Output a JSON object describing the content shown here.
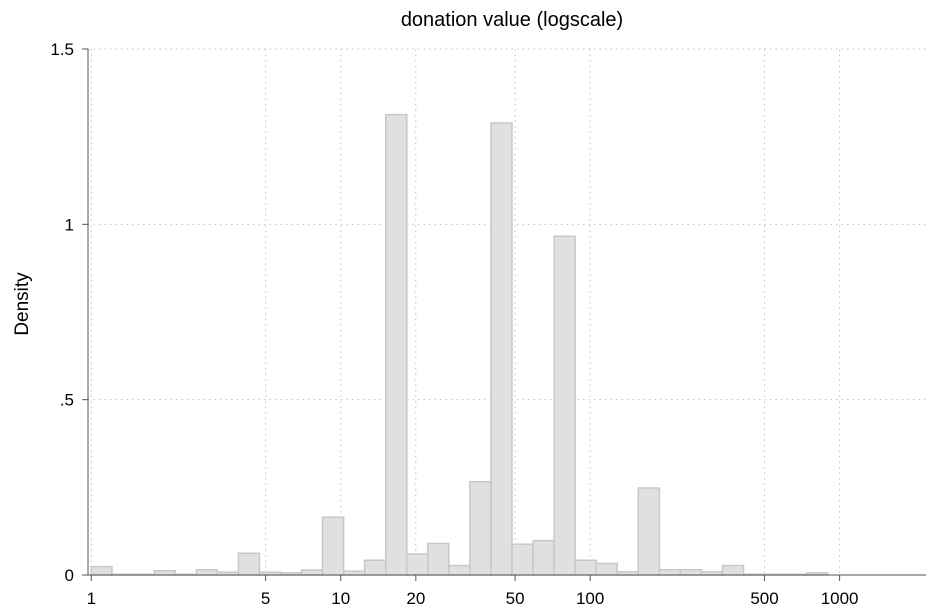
{
  "chart_data": {
    "type": "bar",
    "title": "donation value (logscale)",
    "xlabel": "",
    "ylabel": "Density",
    "xscale": "log",
    "xlim": [
      0.97,
      2220
    ],
    "ylim": [
      0,
      1.5
    ],
    "x_ticks": [
      {
        "value": 1,
        "label": "1"
      },
      {
        "value": 5,
        "label": "5"
      },
      {
        "value": 10,
        "label": "10"
      },
      {
        "value": 20,
        "label": "20"
      },
      {
        "value": 50,
        "label": "50"
      },
      {
        "value": 100,
        "label": "100"
      },
      {
        "value": 500,
        "label": "500"
      },
      {
        "value": 1000,
        "label": "1000"
      }
    ],
    "y_ticks": [
      {
        "value": 0,
        "label": "0"
      },
      {
        "value": 0.5,
        "label": ".5"
      },
      {
        "value": 1,
        "label": "1"
      },
      {
        "value": 1.5,
        "label": "1.5"
      }
    ],
    "grid": true,
    "legend": "none",
    "bar_fill": "#e0e0e0",
    "bar_edge": "#c8c8c8",
    "grid_color": "#c0c0c0",
    "bars": [
      {
        "x0": 1.0,
        "x1": 1.21,
        "density": 0.024
      },
      {
        "x0": 1.21,
        "x1": 1.47,
        "density": 0.002
      },
      {
        "x0": 1.47,
        "x1": 1.79,
        "density": 0.002
      },
      {
        "x0": 1.79,
        "x1": 2.17,
        "density": 0.012
      },
      {
        "x0": 2.17,
        "x1": 2.64,
        "density": 0.002
      },
      {
        "x0": 2.64,
        "x1": 3.2,
        "density": 0.015
      },
      {
        "x0": 3.2,
        "x1": 3.89,
        "density": 0.008
      },
      {
        "x0": 3.89,
        "x1": 4.72,
        "density": 0.062
      },
      {
        "x0": 4.72,
        "x1": 5.73,
        "density": 0.008
      },
      {
        "x0": 5.73,
        "x1": 6.96,
        "density": 0.006
      },
      {
        "x0": 6.96,
        "x1": 8.45,
        "density": 0.014
      },
      {
        "x0": 8.45,
        "x1": 10.27,
        "density": 0.165
      },
      {
        "x0": 10.27,
        "x1": 12.47,
        "density": 0.011
      },
      {
        "x0": 12.47,
        "x1": 15.15,
        "density": 0.042
      },
      {
        "x0": 15.15,
        "x1": 18.4,
        "density": 1.313
      },
      {
        "x0": 18.4,
        "x1": 22.34,
        "density": 0.06
      },
      {
        "x0": 22.34,
        "x1": 27.13,
        "density": 0.09
      },
      {
        "x0": 27.13,
        "x1": 32.95,
        "density": 0.027
      },
      {
        "x0": 32.95,
        "x1": 40.02,
        "density": 0.266
      },
      {
        "x0": 40.02,
        "x1": 48.6,
        "density": 1.289
      },
      {
        "x0": 48.6,
        "x1": 59.03,
        "density": 0.088
      },
      {
        "x0": 59.03,
        "x1": 71.69,
        "density": 0.098
      },
      {
        "x0": 71.69,
        "x1": 87.06,
        "density": 0.966
      },
      {
        "x0": 87.06,
        "x1": 105.73,
        "density": 0.042
      },
      {
        "x0": 105.73,
        "x1": 128.4,
        "density": 0.033
      },
      {
        "x0": 128.4,
        "x1": 155.94,
        "density": 0.009
      },
      {
        "x0": 155.94,
        "x1": 189.38,
        "density": 0.248
      },
      {
        "x0": 189.38,
        "x1": 230.0,
        "density": 0.015
      },
      {
        "x0": 230.0,
        "x1": 279.32,
        "density": 0.015
      },
      {
        "x0": 279.32,
        "x1": 339.21,
        "density": 0.009
      },
      {
        "x0": 339.21,
        "x1": 411.96,
        "density": 0.027
      },
      {
        "x0": 411.96,
        "x1": 500.3,
        "density": 0.002
      },
      {
        "x0": 500.3,
        "x1": 607.59,
        "density": 0.002
      },
      {
        "x0": 607.59,
        "x1": 737.88,
        "density": 0.002
      },
      {
        "x0": 737.88,
        "x1": 896.12,
        "density": 0.006
      }
    ]
  }
}
